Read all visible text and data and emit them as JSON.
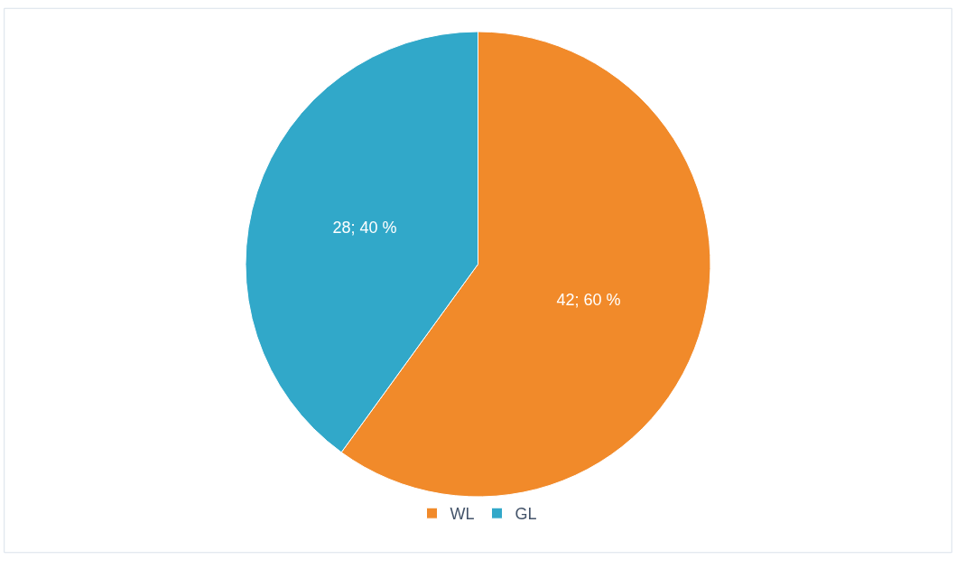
{
  "chart_data": {
    "type": "pie",
    "categories": [
      "WL",
      "GL"
    ],
    "values": [
      42,
      28
    ],
    "colors": [
      "#f18a2a",
      "#31a8c9"
    ],
    "value_labels": [
      "42; 60 %",
      "28; 40 %"
    ],
    "legend": "bottom"
  }
}
